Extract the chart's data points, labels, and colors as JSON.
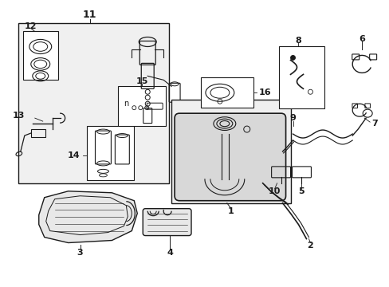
{
  "background_color": "#ffffff",
  "border_color": "#1a1a1a",
  "line_color": "#1a1a1a",
  "fig_width": 4.89,
  "fig_height": 3.6,
  "dpi": 100,
  "gray_fill": "#e8e8e8",
  "light_gray": "#f0f0f0"
}
